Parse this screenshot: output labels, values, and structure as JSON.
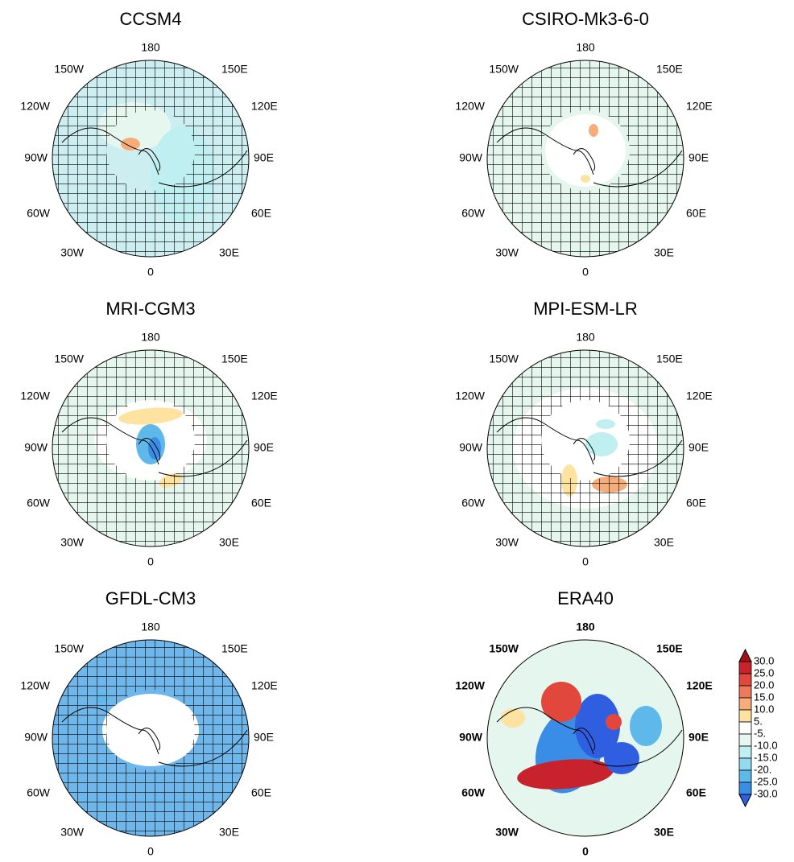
{
  "panels": [
    {
      "title": "CCSM4",
      "base_color": "#cdeef0",
      "hatch": true,
      "bold_labels": false
    },
    {
      "title": "CSIRO-Mk3-6-0",
      "base_color": "#e4f6ee",
      "hatch": true,
      "bold_labels": false
    },
    {
      "title": "MRI-CGM3",
      "base_color": "#e4f6ee",
      "hatch": true,
      "bold_labels": false
    },
    {
      "title": "MPI-ESM-LR",
      "base_color": "#e4f6ee",
      "hatch": true,
      "bold_labels": false
    },
    {
      "title": "GFDL-CM3",
      "base_color": "#6fb6ea",
      "hatch": true,
      "bold_labels": false
    },
    {
      "title": "ERA40",
      "base_color": "#e4f6ee",
      "hatch": false,
      "bold_labels": true
    }
  ],
  "lon_labels": [
    "180",
    "150W",
    "150E",
    "120W",
    "120E",
    "90W",
    "90E",
    "60W",
    "60E",
    "30W",
    "30E",
    "0"
  ],
  "colorbar": {
    "top_color": "#a50f15",
    "bottom_color": "#2f5fe0",
    "band_colors": [
      "#c8232c",
      "#e2473c",
      "#ef7a5a",
      "#f7ad7a",
      "#fde2a0",
      "#ffffff",
      "#e6f7ef",
      "#bfeff0",
      "#8fdcef",
      "#5fb8ea",
      "#3a8de6"
    ],
    "labels": [
      "30.0",
      "25.0",
      "20.0",
      "15.0",
      "10.0",
      "5.",
      "-5.",
      "-10.0",
      "-15.0",
      "-20.",
      "-25.0",
      "-30.0"
    ]
  }
}
